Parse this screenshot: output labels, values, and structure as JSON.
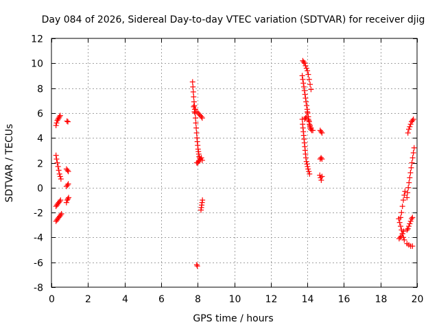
{
  "chart_data": {
    "type": "scatter",
    "title": "Day 084 of 2026, Sidereal Day-to-day VTEC variation (SDTVAR) for receiver djig",
    "xlabel": "GPS time / hours",
    "ylabel": "SDTVAR / TECUs",
    "xlim": [
      0,
      20
    ],
    "ylim": [
      -8,
      12
    ],
    "xticks": [
      0,
      2,
      4,
      6,
      8,
      10,
      12,
      14,
      16,
      18,
      20
    ],
    "yticks": [
      -8,
      -6,
      -4,
      -2,
      0,
      2,
      4,
      6,
      8,
      10,
      12
    ],
    "grid": true,
    "marker": "+",
    "marker_color": "#ff0000",
    "series": [
      {
        "name": "SDTVAR",
        "points": [
          [
            0.25,
            5.0
          ],
          [
            0.28,
            5.2
          ],
          [
            0.32,
            5.4
          ],
          [
            0.36,
            5.5
          ],
          [
            0.4,
            5.6
          ],
          [
            0.44,
            5.7
          ],
          [
            0.48,
            5.8
          ],
          [
            0.85,
            5.35
          ],
          [
            0.9,
            5.3
          ],
          [
            0.25,
            2.6
          ],
          [
            0.28,
            2.3
          ],
          [
            0.32,
            2.0
          ],
          [
            0.36,
            1.7
          ],
          [
            0.4,
            1.4
          ],
          [
            0.44,
            1.1
          ],
          [
            0.48,
            0.9
          ],
          [
            0.52,
            0.7
          ],
          [
            0.82,
            1.5
          ],
          [
            0.88,
            1.4
          ],
          [
            0.92,
            1.3
          ],
          [
            0.82,
            0.1
          ],
          [
            0.88,
            0.2
          ],
          [
            0.92,
            0.3
          ],
          [
            0.25,
            -1.5
          ],
          [
            0.3,
            -1.4
          ],
          [
            0.35,
            -1.3
          ],
          [
            0.4,
            -1.2
          ],
          [
            0.45,
            -1.1
          ],
          [
            0.5,
            -1.0
          ],
          [
            0.82,
            -1.2
          ],
          [
            0.86,
            -1.0
          ],
          [
            0.9,
            -0.9
          ],
          [
            0.94,
            -0.8
          ],
          [
            0.25,
            -2.7
          ],
          [
            0.3,
            -2.6
          ],
          [
            0.35,
            -2.5
          ],
          [
            0.4,
            -2.4
          ],
          [
            0.45,
            -2.3
          ],
          [
            0.5,
            -2.2
          ],
          [
            0.55,
            -2.1
          ],
          [
            7.72,
            8.5
          ],
          [
            7.74,
            8.1
          ],
          [
            7.76,
            7.7
          ],
          [
            7.78,
            7.3
          ],
          [
            7.8,
            6.9
          ],
          [
            7.82,
            6.6
          ],
          [
            7.84,
            6.3
          ],
          [
            7.86,
            6.0
          ],
          [
            7.88,
            5.6
          ],
          [
            7.9,
            5.2
          ],
          [
            7.92,
            4.8
          ],
          [
            7.94,
            4.4
          ],
          [
            7.96,
            4.0
          ],
          [
            7.98,
            3.7
          ],
          [
            8.0,
            3.4
          ],
          [
            8.02,
            3.1
          ],
          [
            8.04,
            2.9
          ],
          [
            8.06,
            2.7
          ],
          [
            8.08,
            2.5
          ],
          [
            8.1,
            2.4
          ],
          [
            8.14,
            2.3
          ],
          [
            7.78,
            6.5
          ],
          [
            7.82,
            6.1
          ],
          [
            7.88,
            6.3
          ],
          [
            7.95,
            6.1
          ],
          [
            8.02,
            6.0
          ],
          [
            8.08,
            5.9
          ],
          [
            8.14,
            5.8
          ],
          [
            8.2,
            5.7
          ],
          [
            8.25,
            5.6
          ],
          [
            7.95,
            2.0
          ],
          [
            8.0,
            2.0
          ],
          [
            8.05,
            2.1
          ],
          [
            8.1,
            2.2
          ],
          [
            8.15,
            2.3
          ],
          [
            8.2,
            2.4
          ],
          [
            8.25,
            2.2
          ],
          [
            8.18,
            -1.8
          ],
          [
            8.2,
            -1.6
          ],
          [
            8.22,
            -1.4
          ],
          [
            8.24,
            -1.2
          ],
          [
            8.26,
            -1.0
          ],
          [
            7.95,
            -6.2
          ],
          [
            7.98,
            -6.3
          ],
          [
            13.75,
            10.2
          ],
          [
            13.8,
            10.1
          ],
          [
            13.85,
            10.0
          ],
          [
            13.9,
            9.8
          ],
          [
            13.95,
            9.6
          ],
          [
            14.0,
            9.4
          ],
          [
            14.05,
            9.1
          ],
          [
            14.1,
            8.7
          ],
          [
            14.15,
            8.3
          ],
          [
            14.2,
            7.9
          ],
          [
            13.72,
            9.0
          ],
          [
            13.75,
            8.7
          ],
          [
            13.78,
            8.4
          ],
          [
            13.81,
            8.1
          ],
          [
            13.84,
            7.8
          ],
          [
            13.87,
            7.5
          ],
          [
            13.9,
            7.2
          ],
          [
            13.93,
            6.9
          ],
          [
            13.96,
            6.6
          ],
          [
            13.99,
            6.3
          ],
          [
            14.02,
            6.0
          ],
          [
            14.05,
            5.7
          ],
          [
            14.08,
            5.4
          ],
          [
            14.11,
            5.1
          ],
          [
            14.14,
            4.9
          ],
          [
            14.18,
            4.7
          ],
          [
            14.24,
            4.6
          ],
          [
            14.3,
            4.6
          ],
          [
            13.72,
            5.5
          ],
          [
            13.74,
            5.1
          ],
          [
            13.76,
            4.8
          ],
          [
            13.78,
            4.5
          ],
          [
            13.8,
            4.2
          ],
          [
            13.82,
            3.9
          ],
          [
            13.84,
            3.6
          ],
          [
            13.86,
            3.3
          ],
          [
            13.88,
            3.0
          ],
          [
            13.9,
            2.7
          ],
          [
            13.92,
            2.4
          ],
          [
            13.95,
            2.1
          ],
          [
            13.98,
            1.9
          ],
          [
            14.01,
            1.7
          ],
          [
            14.04,
            1.5
          ],
          [
            14.08,
            1.3
          ],
          [
            14.12,
            1.1
          ],
          [
            13.85,
            5.5
          ],
          [
            13.9,
            5.6
          ],
          [
            13.95,
            5.7
          ],
          [
            14.0,
            6.1
          ],
          [
            14.05,
            5.5
          ],
          [
            14.1,
            5.3
          ],
          [
            14.15,
            5.0
          ],
          [
            14.2,
            4.8
          ],
          [
            14.7,
            4.6
          ],
          [
            14.75,
            4.5
          ],
          [
            14.8,
            4.4
          ],
          [
            14.7,
            2.3
          ],
          [
            14.75,
            2.4
          ],
          [
            14.8,
            2.3
          ],
          [
            14.68,
            1.0
          ],
          [
            14.72,
            0.8
          ],
          [
            14.76,
            0.6
          ],
          [
            14.8,
            0.9
          ],
          [
            19.0,
            -2.5
          ],
          [
            19.05,
            -2.8
          ],
          [
            19.1,
            -3.1
          ],
          [
            19.15,
            -3.4
          ],
          [
            19.2,
            -3.7
          ],
          [
            19.25,
            -4.0
          ],
          [
            19.3,
            -4.2
          ],
          [
            19.02,
            -4.1
          ],
          [
            19.08,
            -4.0
          ],
          [
            19.14,
            -3.9
          ],
          [
            19.2,
            -3.7
          ],
          [
            19.26,
            -3.5
          ],
          [
            19.1,
            -2.4
          ],
          [
            19.15,
            -2.0
          ],
          [
            19.2,
            -1.5
          ],
          [
            19.25,
            -1.0
          ],
          [
            19.3,
            -0.6
          ],
          [
            19.34,
            -0.3
          ],
          [
            19.45,
            -3.4
          ],
          [
            19.5,
            -3.3
          ],
          [
            19.55,
            -3.1
          ],
          [
            19.6,
            -2.9
          ],
          [
            19.65,
            -2.7
          ],
          [
            19.7,
            -2.5
          ],
          [
            19.75,
            -2.4
          ],
          [
            19.45,
            -4.5
          ],
          [
            19.55,
            -4.6
          ],
          [
            19.65,
            -4.7
          ],
          [
            19.75,
            -4.7
          ],
          [
            19.45,
            -0.8
          ],
          [
            19.48,
            -0.4
          ],
          [
            19.52,
            0.0
          ],
          [
            19.56,
            0.4
          ],
          [
            19.6,
            0.8
          ],
          [
            19.64,
            1.2
          ],
          [
            19.68,
            1.6
          ],
          [
            19.72,
            2.0
          ],
          [
            19.76,
            2.4
          ],
          [
            19.8,
            2.8
          ],
          [
            19.84,
            3.2
          ],
          [
            19.5,
            4.4
          ],
          [
            19.55,
            4.7
          ],
          [
            19.6,
            4.9
          ],
          [
            19.65,
            5.1
          ],
          [
            19.7,
            5.3
          ],
          [
            19.75,
            5.4
          ],
          [
            19.8,
            5.5
          ]
        ]
      }
    ]
  }
}
